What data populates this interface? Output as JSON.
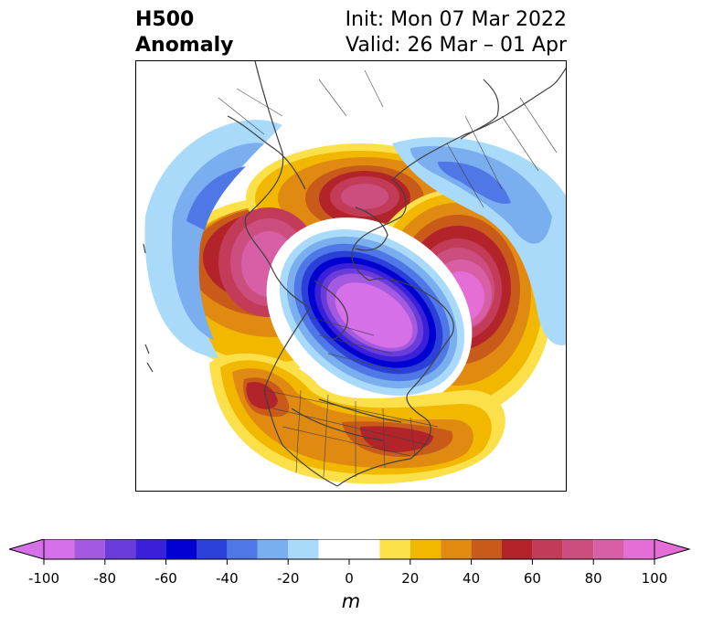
{
  "title": {
    "left_line1": "H500",
    "left_line2": "Anomaly",
    "right_line1": "Init: Mon 07 Mar 2022",
    "right_line2": "Valid: 26 Mar – 01 Apr"
  },
  "colorbar": {
    "unit": "m",
    "ticks": [
      "-100",
      "-80",
      "-60",
      "-40",
      "-20",
      "0",
      "20",
      "40",
      "60",
      "80",
      "100"
    ],
    "levels": [
      {
        "from": -100,
        "to": -90,
        "color": "#d670e8"
      },
      {
        "from": -90,
        "to": -80,
        "color": "#a35ae0"
      },
      {
        "from": -80,
        "to": -70,
        "color": "#6a3ddb"
      },
      {
        "from": -70,
        "to": -60,
        "color": "#3a20d8"
      },
      {
        "from": -60,
        "to": -50,
        "color": "#0000d0"
      },
      {
        "from": -50,
        "to": -40,
        "color": "#2a40d8"
      },
      {
        "from": -40,
        "to": -30,
        "color": "#4f78e6"
      },
      {
        "from": -30,
        "to": -20,
        "color": "#7aaeee"
      },
      {
        "from": -20,
        "to": -10,
        "color": "#a9dafa"
      },
      {
        "from": -10,
        "to": 10,
        "color": "#ffffff"
      },
      {
        "from": 10,
        "to": 20,
        "color": "#fbe04a"
      },
      {
        "from": 20,
        "to": 30,
        "color": "#f2b800"
      },
      {
        "from": 30,
        "to": 40,
        "color": "#e08a12"
      },
      {
        "from": 40,
        "to": 50,
        "color": "#c85a1a"
      },
      {
        "from": 50,
        "to": 60,
        "color": "#b2242a"
      },
      {
        "from": 60,
        "to": 70,
        "color": "#c23c5a"
      },
      {
        "from": 70,
        "to": 80,
        "color": "#cc4e7e"
      },
      {
        "from": 80,
        "to": 90,
        "color": "#d85fa6"
      },
      {
        "from": 90,
        "to": 100,
        "color": "#e56ed6"
      }
    ],
    "extend_low_color": "#d670e8",
    "extend_high_color": "#e56ed6"
  },
  "map": {
    "projection": "north-polar stereographic",
    "field": "500 hPa geopotential height anomaly",
    "features": [
      "coastlines",
      "country borders",
      "state/province borders"
    ]
  }
}
